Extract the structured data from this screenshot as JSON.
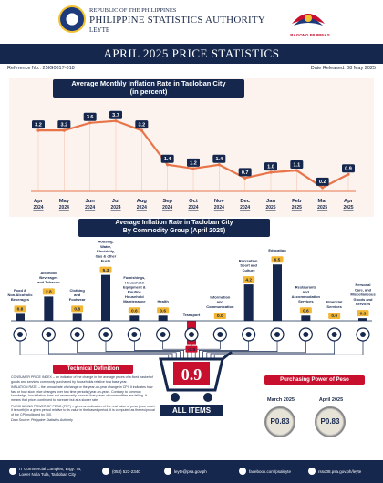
{
  "header": {
    "republic": "REPUBLIC OF THE PHILIPPINES",
    "agency": "PHILIPPINE STATISTICS AUTHORITY",
    "province": "LEYTE",
    "bagong_pilipinas": "BAGONG PILIPINAS"
  },
  "banner": {
    "title": "APRIL 2025 PRICE STATISTICS"
  },
  "reference": {
    "number": "Reference No.: 25IG0817-018",
    "release": "Date Released: 08 May 2025"
  },
  "colors": {
    "navy": "#15274d",
    "red": "#c8102e",
    "line": "#e8754a",
    "panel": "#fdf3ee",
    "gold": "#f2b632"
  },
  "chart_data": [
    {
      "type": "line",
      "title": "Average Monthly Inflation Rate in Tacloban City (in percent)",
      "title_line1": "Average Monthly Inflation Rate in Tacloban City",
      "title_line2": "(in percent)",
      "x_months": [
        "Apr",
        "May",
        "Jun",
        "Jul",
        "Aug",
        "Sep",
        "Oct",
        "Nov",
        "Dec",
        "Jan",
        "Feb",
        "Mar",
        "Apr"
      ],
      "x_years": [
        "2024",
        "2024",
        "2024",
        "2024",
        "2024",
        "2024",
        "2024",
        "2024",
        "2024",
        "2025",
        "2025",
        "2025",
        "2025"
      ],
      "values": [
        3.2,
        3.2,
        3.6,
        3.7,
        3.2,
        1.4,
        1.2,
        1.4,
        0.7,
        1.0,
        1.1,
        0.2,
        0.9
      ],
      "ylim": [
        0,
        4.5
      ],
      "grid": false
    },
    {
      "type": "bar",
      "title": "Average Inflation Rate in Tacloban City By Commodity Group (April 2025)",
      "title_line1": "Average Inflation Rate in Tacloban City",
      "title_line2": "By Commodity Group (April 2025)",
      "categories": [
        "Food & Non-Alcoholic Beverages",
        "Alcoholic Beverages and Tobacco",
        "Clothing and Footwear",
        "Housing, Water, Electricity, Gas & other Fuels",
        "Furnishings, Household Equipment & Routine Household Maintenance",
        "Health",
        "Transport",
        "Information and Communication",
        "Recreation, Sport and Culture",
        "Education",
        "Restaurants and Accommodation Services",
        "Financial Services",
        "Personal Care, and Miscellaneous Goods and Services"
      ],
      "values": [
        0.8,
        2.8,
        0.8,
        5.3,
        0.6,
        0.6,
        -2.8,
        0.0,
        4.2,
        6.5,
        0.6,
        0.0,
        0.3
      ],
      "labels": [
        "0.8",
        "2.8",
        "0.8",
        "5.3",
        "0.6",
        "0.6",
        "-2.8",
        "0.0",
        "4.2",
        "6.5",
        "0.6",
        "0.0",
        "0.3"
      ],
      "all_items_label": "ALL ITEMS",
      "all_items_value": "0.9"
    }
  ],
  "technical": {
    "title": "Technical Definition",
    "p1": "CONSUMER PRICE INDEX – an indicator of the change in the average prices of a fixed basket of goods and services commonly purchased by households relative to a base year.",
    "p2": "INFLATION RATE – the annual rate of change or the year-on-year change in CPI. It indicates how fast or how slow price changes over two time periods (year-on-year). Contrary to common knowledge, low inflation does not necessarily connote that prices of commodities are falling. It means that prices continued to increase but at a slower rate.",
    "p3": "PURCHASING POWER OF PESO (PPP) – gives an indication of the real value of peso (how much it is worth) in a given period relative to its value in the based period. It is computed as the reciprocal of the CPI multiplied by 100.",
    "source": "Data Source: Philippine Statistics Authority"
  },
  "ppp": {
    "title": "Purchasing Power of Peso",
    "items": [
      {
        "label": "March 2025",
        "value": "P0.83"
      },
      {
        "label": "April 2025",
        "value": "P0.83"
      }
    ]
  },
  "footer": {
    "address": "IT Commercial Complex, Brgy. 74, Lower Nula Tula, Tacloban City",
    "phone": "(053) 523-2340",
    "email": "leyte@psa.gov.ph",
    "facebook": "facebook.com/psaleyte",
    "web": "rsso08.psa.gov.ph/leyte"
  }
}
